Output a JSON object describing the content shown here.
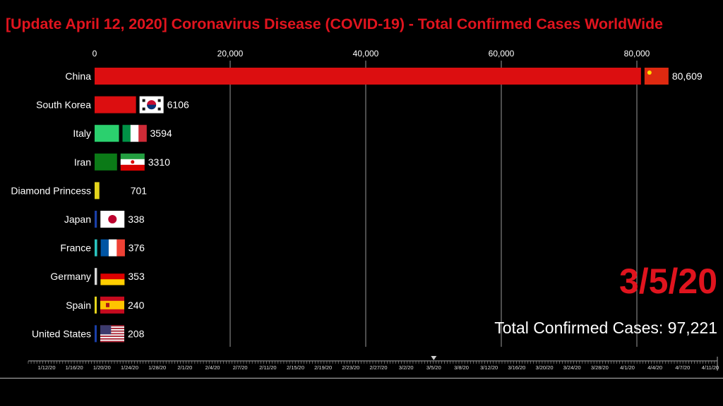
{
  "title": "[Update April 12, 2020] Coronavirus Disease (COVID-19) - Total Confirmed Cases WorldWide",
  "date_label": "3/5/20",
  "total_label": "Total Confirmed Cases: 97,221",
  "chart_data": {
    "type": "bar",
    "orientation": "horizontal",
    "x_axis_position": "top",
    "xlim": [
      0,
      90000
    ],
    "xticks": [
      0,
      20000,
      40000,
      60000,
      80000
    ],
    "xtick_labels": [
      "0",
      "20,000",
      "40,000",
      "60,000",
      "80,000"
    ],
    "grid": true,
    "bars": [
      {
        "category": "China",
        "value": 80609,
        "label": "80,609",
        "color": "#dc0e10",
        "flag": "china-flag"
      },
      {
        "category": "South Korea",
        "value": 6106,
        "label": "6106",
        "color": "#dc0e10",
        "flag": "south-korea-flag"
      },
      {
        "category": "Italy",
        "value": 3594,
        "label": "3594",
        "color": "#2bd06e",
        "flag": "italy-flag"
      },
      {
        "category": "Iran",
        "value": 3310,
        "label": "3310",
        "color": "#0b7a17",
        "flag": "iran-flag"
      },
      {
        "category": "Diamond Princess",
        "value": 701,
        "label": "701",
        "color": "#e4d41c",
        "flag": null
      },
      {
        "category": "Japan",
        "value": 338,
        "label": "338",
        "color": "#1a3fa8",
        "flag": "japan-flag"
      },
      {
        "category": "France",
        "value": 376,
        "label": "376",
        "color": "#2ac4c0",
        "flag": "france-flag"
      },
      {
        "category": "Germany",
        "value": 353,
        "label": "353",
        "color": "#d8d8d8",
        "flag": "germany-flag"
      },
      {
        "category": "Spain",
        "value": 240,
        "label": "240",
        "color": "#e4d41c",
        "flag": "spain-flag"
      },
      {
        "category": "United States",
        "value": 208,
        "label": "208",
        "color": "#1a3fa8",
        "flag": "united-states-flag"
      }
    ]
  },
  "timeline": {
    "labels": [
      "1/12/20",
      "1/16/20",
      "1/20/20",
      "1/24/20",
      "1/28/20",
      "2/1/20",
      "2/4/20",
      "2/7/20",
      "2/11/20",
      "2/15/20",
      "2/19/20",
      "2/23/20",
      "2/27/20",
      "3/2/20",
      "3/5/20",
      "3/8/20",
      "3/12/20",
      "3/16/20",
      "3/20/20",
      "3/24/20",
      "3/28/20",
      "4/1/20",
      "4/4/20",
      "4/7/20",
      "4/11/20"
    ],
    "current": "3/5/20"
  }
}
